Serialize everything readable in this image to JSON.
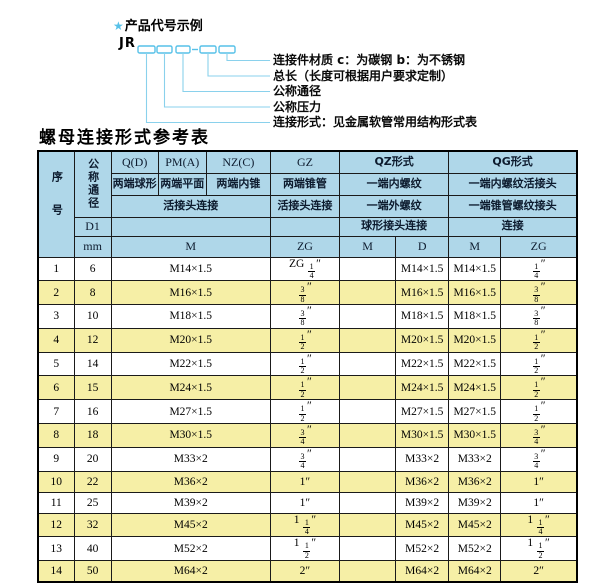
{
  "colors": {
    "header_blue": "#AFD7E9",
    "row_yellow": "#F6EFA6",
    "accent_cyan": "#57C1E8",
    "line_cyan": "#8AD1EC",
    "border_dark": "#1A1A1A"
  },
  "diagram": {
    "star": "★",
    "title": "产品代号示例",
    "code_prefix": "JR",
    "labels": [
      "连接件材质  c：为碳钢  b：为不锈钢",
      "总长（长度可根据用户要求定制）",
      "公称通径",
      "公称压力",
      "连接形式：见金属软管常用结构形式表"
    ]
  },
  "table": {
    "title": "螺母连接形式参考表",
    "header": {
      "seq": "序号",
      "dn": "公称通径",
      "d1": "D1",
      "mm": "mm",
      "q": "Q(D)",
      "q_desc": "两端球形",
      "pm": "PM(A)",
      "pm_desc": "两端平面",
      "nz": "NZ(C)",
      "nz_desc": "两端内锥",
      "gz": "GZ",
      "gz_desc": "两端锥管",
      "gz_union": "活接头连接",
      "union_qpn": "活接头连接",
      "qz": "QZ形式",
      "qz_desc1": "一端内螺纹",
      "qz_desc2": "一端外螺纹",
      "qz_desc3": "球形接头连接",
      "qg": "QG形式",
      "qg_desc1": "一端内螺纹活接头",
      "qg_desc2": "一端锥管螺纹接头",
      "qg_desc3": "连接",
      "m": "M",
      "zg": "ZG",
      "qz_m": "M",
      "qz_d": "D",
      "qg_m": "M",
      "qg_zg": "ZG"
    },
    "rows": [
      [
        "1",
        "6",
        "M14×1.5",
        "ZG 1/4″",
        "",
        "M14×1.5",
        "M14×1.5",
        "1/4″"
      ],
      [
        "2",
        "8",
        "M16×1.5",
        "3/8″",
        "",
        "M16×1.5",
        "M16×1.5",
        "3/8″"
      ],
      [
        "3",
        "10",
        "M18×1.5",
        "3/8″",
        "",
        "M18×1.5",
        "M18×1.5",
        "3/8″"
      ],
      [
        "4",
        "12",
        "M20×1.5",
        "1/2″",
        "",
        "M20×1.5",
        "M20×1.5",
        "1/2″"
      ],
      [
        "5",
        "14",
        "M22×1.5",
        "1/2″",
        "",
        "M22×1.5",
        "M22×1.5",
        "1/2″"
      ],
      [
        "6",
        "15",
        "M24×1.5",
        "1/2″",
        "",
        "M24×1.5",
        "M24×1.5",
        "1/2″"
      ],
      [
        "7",
        "16",
        "M27×1.5",
        "1/2″",
        "",
        "M27×1.5",
        "M27×1.5",
        "1/2″"
      ],
      [
        "8",
        "18",
        "M30×1.5",
        "3/4″",
        "",
        "M30×1.5",
        "M30×1.5",
        "3/4″"
      ],
      [
        "9",
        "20",
        "M33×2",
        "3/4″",
        "",
        "M33×2",
        "M33×2",
        "3/4″"
      ],
      [
        "10",
        "22",
        "M36×2",
        "1″",
        "",
        "M36×2",
        "M36×2",
        "1″"
      ],
      [
        "11",
        "25",
        "M39×2",
        "1″",
        "",
        "M39×2",
        "M39×2",
        "1″"
      ],
      [
        "12",
        "32",
        "M45×2",
        "1 1/4″",
        "",
        "M45×2",
        "M45×2",
        "1 1/4″"
      ],
      [
        "13",
        "40",
        "M52×2",
        "1 1/2″",
        "",
        "M52×2",
        "M52×2",
        "1 1/2″"
      ],
      [
        "14",
        "50",
        "M64×2",
        "2″",
        "",
        "M64×2",
        "M64×2",
        "2″"
      ]
    ]
  }
}
